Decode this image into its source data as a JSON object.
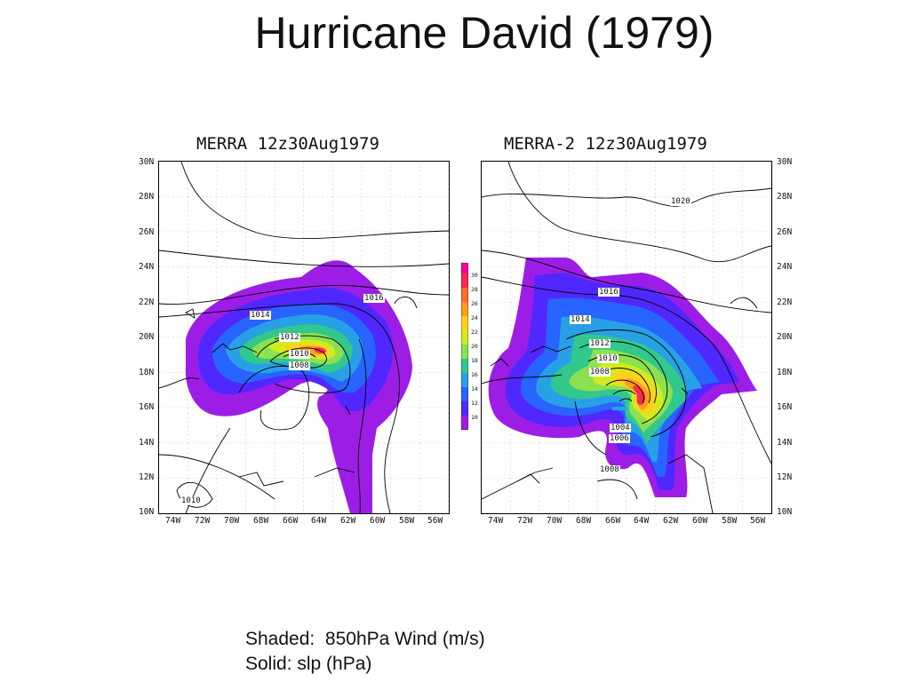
{
  "slide_title": "Hurricane David (1979)",
  "panels": [
    {
      "title": "MERRA 12z30Aug1979"
    },
    {
      "title": "MERRA-2 12z30Aug1979"
    }
  ],
  "lat_labels": [
    "30N",
    "28N",
    "26N",
    "24N",
    "22N",
    "20N",
    "18N",
    "16N",
    "14N",
    "12N",
    "10N"
  ],
  "lon_labels": [
    "74W",
    "72W",
    "70W",
    "68W",
    "66W",
    "64W",
    "62W",
    "60W",
    "58W",
    "56W"
  ],
  "contour_labels_left": [
    "1016",
    "1014",
    "1012",
    "1010",
    "1008",
    "1010"
  ],
  "contour_labels_right": [
    "1020",
    "1016",
    "1014",
    "1012",
    "1010",
    "1008",
    "1004",
    "1006",
    "1008"
  ],
  "colorbar": {
    "labels": [
      "30",
      "28",
      "26",
      "24",
      "22",
      "20",
      "18",
      "16",
      "14",
      "12",
      "10"
    ],
    "colors": [
      "#ff009c",
      "#ff2850",
      "#ff6a32",
      "#ff9c1e",
      "#ffd21e",
      "#d2eb1e",
      "#8ce150",
      "#32c88c",
      "#28a0e6",
      "#2864ff",
      "#5028ff",
      "#9c1ee6"
    ]
  },
  "legend": {
    "line1": "Shaded:  850hPa Wind (m/s)",
    "line2": "Solid: slp (hPa)"
  }
}
